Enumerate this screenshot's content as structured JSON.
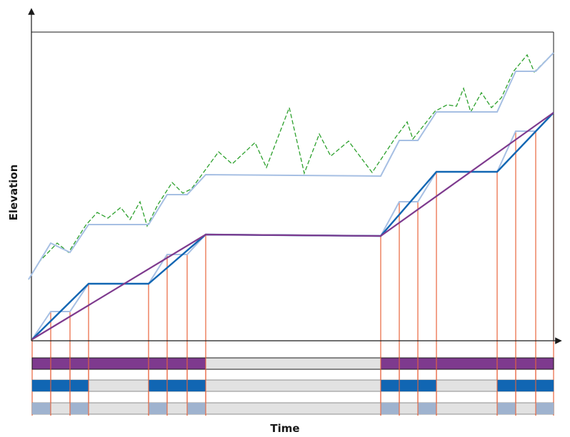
{
  "axes": {
    "x_label": "Time",
    "y_label": "Elevation"
  },
  "colors": {
    "frame": "#1a1a1a",
    "terrain_profile": "#2ca02c",
    "path_light": "#a6bfe3",
    "path_dark": "#1166b3",
    "direct_line": "#7e3a8e",
    "guide_line": "#e8643c",
    "bar_gray": "#e2e2e2",
    "bar_purple": "#7e3a8e",
    "bar_blue": "#1166b3",
    "bar_light_blue": "#9fb3cf"
  },
  "legend_bars": [
    {
      "name": "purple-segment-bar"
    },
    {
      "name": "blue-segment-bar"
    },
    {
      "name": "light-blue-segment-bar"
    }
  ]
}
